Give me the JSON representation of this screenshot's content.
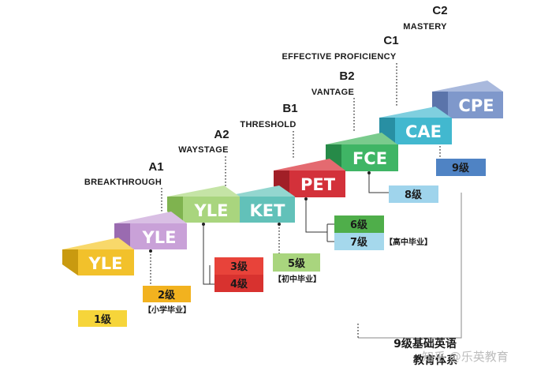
{
  "levels": {
    "a1": {
      "code": "A1",
      "name": "BREAKTHROUGH"
    },
    "a2": {
      "code": "A2",
      "name": "WAYSTAGE"
    },
    "b1": {
      "code": "B1",
      "name": "THRESHOLD"
    },
    "b2": {
      "code": "B2",
      "name": "VANTAGE"
    },
    "c1": {
      "code": "C1",
      "name": "EFFECTIVE PROFICIENCY"
    },
    "c2": {
      "code": "C2",
      "name": "MASTERY"
    }
  },
  "blocks": {
    "yle1": {
      "label": "YLE",
      "front": "#f2c12b",
      "top": "#f8d86a",
      "side": "#c99a10"
    },
    "yle2": {
      "label": "YLE",
      "front": "#c9a1d8",
      "top": "#d9bfe4",
      "side": "#9a6bb0"
    },
    "yle3": {
      "label": "YLE",
      "front": "#a9d57e",
      "top": "#c5e4a6",
      "side": "#7fb34f"
    },
    "ket": {
      "label": "KET",
      "front": "#62c1b9",
      "top": "#93d6cf",
      "side": "#3d9b93"
    },
    "pet": {
      "label": "PET",
      "front": "#d3313a",
      "top": "#e46a70",
      "side": "#a11f27"
    },
    "fce": {
      "label": "FCE",
      "front": "#3fb565",
      "top": "#7acb8d",
      "side": "#268a48"
    },
    "cae": {
      "label": "CAE",
      "front": "#42b8cf",
      "top": "#7fcfdf",
      "side": "#288fa3"
    },
    "cpe": {
      "label": "CPE",
      "front": "#7f98cb",
      "top": "#a9b9dd",
      "side": "#5b74aa"
    }
  },
  "grades": {
    "g1": {
      "label": "1级",
      "color": "#f6d53a"
    },
    "g2": {
      "label": "2级",
      "color": "#f2b21f"
    },
    "g3": {
      "label": "3级",
      "color": "#e8433a"
    },
    "g4": {
      "label": "4级",
      "color": "#d8322f"
    },
    "g5": {
      "label": "5级",
      "color": "#a9d57e"
    },
    "g6": {
      "label": "6级",
      "color": "#4fae4a"
    },
    "g7": {
      "label": "7级",
      "color": "#a5d8ec"
    },
    "g8": {
      "label": "8级",
      "color": "#9fd4ec"
    },
    "g9": {
      "label": "9级",
      "color": "#4f83c4"
    }
  },
  "notes": {
    "primary": "【小学毕业】",
    "junior": "【初中毕业】",
    "senior": "【高中毕业】"
  },
  "caption": {
    "line1": "9级基础英语",
    "line2": "教育体系"
  },
  "watermark": "知乎 @乐英教育"
}
